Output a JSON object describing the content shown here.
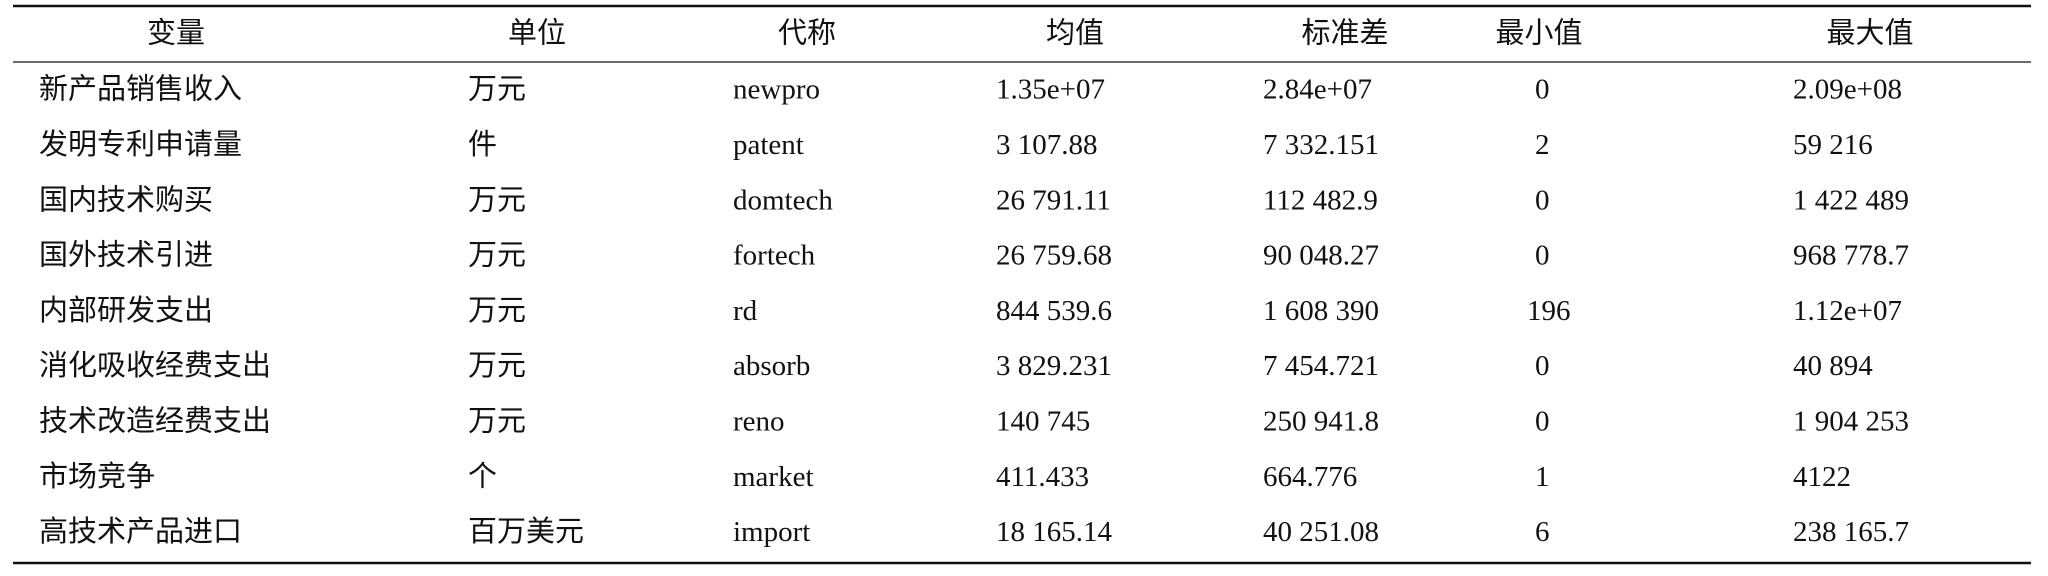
{
  "table": {
    "headers": [
      "变量",
      "单位",
      "代称",
      "均值",
      "标准差",
      "最小值",
      "最大值"
    ],
    "rows": [
      [
        "新产品销售收入",
        "万元",
        "newpro",
        "1.35e+07",
        "2.84e+07",
        "0",
        "2.09e+08"
      ],
      [
        "发明专利申请量",
        "件",
        "patent",
        "3 107.88",
        "7 332.151",
        "2",
        "59 216"
      ],
      [
        "国内技术购买",
        "万元",
        "domtech",
        "26 791.11",
        "112 482.9",
        "0",
        "1 422 489"
      ],
      [
        "国外技术引进",
        "万元",
        "fortech",
        "26 759.68",
        "90 048.27",
        "0",
        "968 778.7"
      ],
      [
        "内部研发支出",
        "万元",
        "rd",
        "844 539.6",
        "1 608 390",
        "196",
        "1.12e+07"
      ],
      [
        "消化吸收经费支出",
        "万元",
        "absorb",
        "3 829.231",
        "7 454.721",
        "0",
        "40 894"
      ],
      [
        "技术改造经费支出",
        "万元",
        "reno",
        "140 745",
        "250 941.8",
        "0",
        "1 904 253"
      ],
      [
        "市场竞争",
        "个",
        "market",
        "411.433",
        "664.776",
        "1",
        "4122"
      ],
      [
        "高技术产品进口",
        "百万美元",
        "import",
        "18 165.14",
        "40 251.08",
        "6",
        "238 165.7"
      ]
    ]
  }
}
